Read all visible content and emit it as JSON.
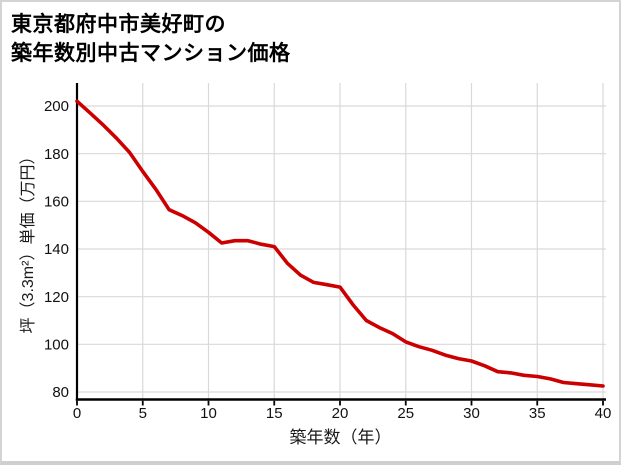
{
  "title": {
    "line1": "東京都府中市美好町の",
    "line2": "築年数別中古マンション価格"
  },
  "chart_data": {
    "type": "line",
    "title": "東京都府中市美好町の築年数別中古マンション価格",
    "xlabel": "築年数（年）",
    "ylabel": "坪（3.3m²）単価（万円）",
    "x": [
      0,
      1,
      2,
      3,
      4,
      5,
      6,
      7,
      8,
      9,
      10,
      11,
      12,
      13,
      14,
      15,
      16,
      17,
      18,
      19,
      20,
      21,
      22,
      23,
      24,
      25,
      26,
      27,
      28,
      29,
      30,
      31,
      32,
      33,
      34,
      35,
      36,
      37,
      38,
      39,
      40
    ],
    "values": [
      202,
      197,
      192,
      186.5,
      180.5,
      172.5,
      165,
      156.5,
      154,
      151,
      147,
      142.5,
      143.5,
      143.5,
      142,
      141,
      134,
      129,
      126,
      125,
      124,
      116.5,
      110,
      107,
      104.5,
      101,
      99,
      97.5,
      95.5,
      94,
      93,
      91,
      88.5,
      88,
      87,
      86.5,
      85.5,
      84,
      83.5,
      83,
      82.5
    ],
    "series_name": "坪単価（万円）",
    "x_ticks": [
      0,
      5,
      10,
      15,
      20,
      25,
      30,
      35,
      40
    ],
    "y_ticks": [
      80,
      100,
      120,
      140,
      160,
      180,
      200
    ],
    "xlim": [
      0,
      40
    ],
    "ylim": [
      77,
      210
    ],
    "grid": true,
    "legend": "none",
    "line_color": "#cc0000",
    "grid_color": "#d9d9d9",
    "axis_color": "#000000",
    "tick_label_color": "#111111"
  }
}
